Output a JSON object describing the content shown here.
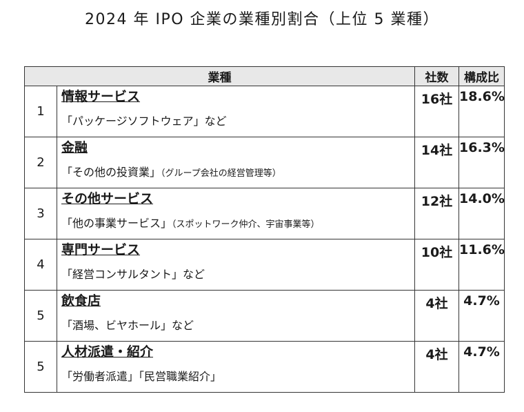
{
  "title": "2024 年 IPO 企業の業種別割合（上位 5 業種）",
  "headers": {
    "industry": "業種",
    "count": "社数",
    "share": "構成比"
  },
  "rows": [
    {
      "rank": "1",
      "name": "情報サービス",
      "example": "「パッケージソフトウェア」など",
      "note": "",
      "count": "16社",
      "share": "18.6%"
    },
    {
      "rank": "2",
      "name": "金融",
      "example": "「その他の投資業」",
      "note": "（グループ会社の経営管理等）",
      "count": "14社",
      "share": "16.3%"
    },
    {
      "rank": "3",
      "name": "その他サービス",
      "example": "「他の事業サービス」",
      "note": "（スポットワーク仲介、宇宙事業等）",
      "count": "12社",
      "share": "14.0%"
    },
    {
      "rank": "4",
      "name": "専門サービス",
      "example": "「経営コンサルタント」など",
      "note": "",
      "count": "10社",
      "share": "11.6%"
    },
    {
      "rank": "5",
      "name": "飲食店",
      "example": "「酒場、ビヤホール」など",
      "note": "",
      "count": "4社",
      "share": "4.7%"
    },
    {
      "rank": "5",
      "name": "人材派遣・紹介",
      "example": "「労働者派遣」「民営職業紹介」",
      "note": "",
      "count": "4社",
      "share": "4.7%"
    }
  ]
}
